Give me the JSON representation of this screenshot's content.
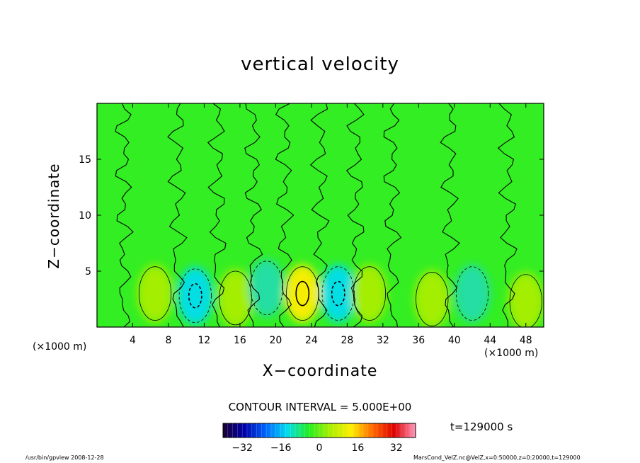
{
  "chart_data": {
    "type": "heatmap",
    "title": "vertical velocity",
    "xlabel": "X−coordinate",
    "ylabel": "Z−coordinate",
    "x_unit_label": "(×1000 m)",
    "xlim": [
      0,
      50
    ],
    "ylim": [
      0,
      20
    ],
    "x_ticks": [
      4,
      8,
      12,
      16,
      20,
      24,
      28,
      32,
      36,
      40,
      44,
      48
    ],
    "y_ticks": [
      5,
      10,
      15
    ],
    "contour_interval_text": "CONTOUR INTERVAL = 5.000E+00",
    "time_text": "t=129000 s",
    "colorbar": {
      "ticks": [
        "−32",
        "−16",
        "0",
        "16",
        "32"
      ],
      "range": [
        -40,
        40
      ],
      "stops": [
        "#1a0033",
        "#0000aa",
        "#0066ff",
        "#00ddee",
        "#22ee22",
        "#aaee00",
        "#ffee00",
        "#ff6600",
        "#dd0000",
        "#ff99bb"
      ]
    },
    "features": [
      {
        "x": 6.5,
        "z": 3.0,
        "w": 5.0,
        "kind": "updraft"
      },
      {
        "x": 11.0,
        "z": 2.8,
        "w": -10.0,
        "kind": "downdraft"
      },
      {
        "x": 15.5,
        "z": 2.6,
        "w": 4.0,
        "kind": "updraft"
      },
      {
        "x": 19.0,
        "z": 3.5,
        "w": -5.0,
        "kind": "downdraft"
      },
      {
        "x": 23.0,
        "z": 3.0,
        "w": 10.0,
        "kind": "updraft"
      },
      {
        "x": 27.0,
        "z": 3.0,
        "w": -9.0,
        "kind": "downdraft"
      },
      {
        "x": 30.5,
        "z": 3.0,
        "w": 5.0,
        "kind": "updraft"
      },
      {
        "x": 37.5,
        "z": 2.5,
        "w": 6.0,
        "kind": "updraft"
      },
      {
        "x": 42.0,
        "z": 3.0,
        "w": -5.0,
        "kind": "downdraft"
      },
      {
        "x": 48.0,
        "z": 2.3,
        "w": 4.0,
        "kind": "updraft"
      }
    ]
  },
  "footer_left": "/usr/bin/gpview   2008-12-28",
  "footer_right": "MarsCond_VelZ.nc@VelZ,x=0:50000,z=0:20000,t=129000"
}
